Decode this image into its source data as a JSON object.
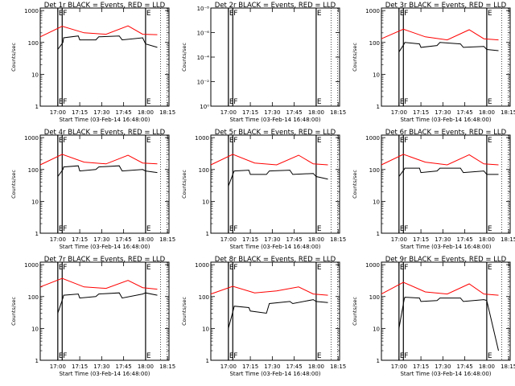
{
  "figure": {
    "title_template": "Det {det}r BLACK = Events, RED = LLD",
    "xlabel": "Start Time (03-Feb-14 16:48:00)"
  },
  "colors": {
    "events": "#000000",
    "lld": "#ff0000",
    "axes": "#000000",
    "background": "#ffffff"
  },
  "chart_data": [
    {
      "type": "line",
      "title": "Det 1r BLACK = Events, RED = LLD",
      "xlabel": "Start Time (03-Feb-14 16:48:00)",
      "ylabel": "Counts/sec",
      "x_ticks": [
        "17:00",
        "17:15",
        "17:30",
        "17:45",
        "18:00",
        "18:15"
      ],
      "y_ticks": [
        "1",
        "10",
        "100",
        "1000"
      ],
      "y_scale": "log",
      "ylim": [
        1,
        1200
      ],
      "vlines": [
        {
          "x_min": 12,
          "label": "E"
        },
        {
          "x_min": 15,
          "label": "F"
        },
        {
          "x_min": 72,
          "label": "E"
        }
      ],
      "series": [
        {
          "name": "Events",
          "x": [
            12,
            15.5,
            16,
            26,
            27,
            38,
            40,
            54,
            56,
            70,
            72,
            80
          ],
          "y": [
            60,
            100,
            140,
            160,
            120,
            120,
            150,
            160,
            120,
            140,
            90,
            70
          ]
        },
        {
          "name": "LLD",
          "x": [
            0,
            15,
            30,
            45,
            60,
            70,
            80
          ],
          "y": [
            150,
            320,
            200,
            180,
            330,
            180,
            175
          ]
        }
      ]
    },
    {
      "type": "line",
      "title": "Det 2r BLACK = Events, RED = LLD",
      "xlabel": "Start Time (03-Feb-14 16:48:00)",
      "ylabel": "Counts/sec",
      "x_ticks": [
        "17:00",
        "17:15",
        "17:30",
        "17:45",
        "18:00",
        "18:15"
      ],
      "y_ticks": [
        "10⁰",
        "10⁻²",
        "10⁻⁴",
        "10⁻⁶",
        "10⁻⁸"
      ],
      "y_scale": "linear",
      "vlines": [
        {
          "x_min": 12,
          "label": "E"
        },
        {
          "x_min": 15,
          "label": "F"
        },
        {
          "x_min": 72,
          "label": "E"
        }
      ],
      "series": [
        {
          "name": "Events",
          "x": [],
          "y": []
        },
        {
          "name": "LLD",
          "x": [],
          "y": []
        }
      ]
    },
    {
      "type": "line",
      "title": "Det 3r BLACK = Events, RED = LLD",
      "xlabel": "Start Time (03-Feb-14 16:48:00)",
      "ylabel": "Counts/sec",
      "x_ticks": [
        "17:00",
        "17:15",
        "17:30",
        "17:45",
        "18:00",
        "18:15"
      ],
      "y_ticks": [
        "1",
        "10",
        "100",
        "1000"
      ],
      "y_scale": "log",
      "ylim": [
        1,
        1200
      ],
      "vlines": [
        {
          "x_min": 12,
          "label": "E"
        },
        {
          "x_min": 15,
          "label": "F"
        },
        {
          "x_min": 72,
          "label": "E"
        }
      ],
      "series": [
        {
          "name": "Events",
          "x": [
            12,
            15.5,
            16,
            26,
            27,
            38,
            40,
            54,
            56,
            70,
            72,
            80
          ],
          "y": [
            50,
            90,
            100,
            90,
            70,
            80,
            100,
            90,
            70,
            75,
            60,
            55
          ]
        },
        {
          "name": "LLD",
          "x": [
            0,
            15,
            30,
            45,
            60,
            70,
            80
          ],
          "y": [
            130,
            260,
            150,
            120,
            250,
            130,
            120
          ]
        }
      ]
    },
    {
      "type": "line",
      "title": "Det 4r BLACK = Events, RED = LLD",
      "xlabel": "Start Time (03-Feb-14 16:48:00)",
      "ylabel": "Counts/sec",
      "x_ticks": [
        "17:00",
        "17:15",
        "17:30",
        "17:45",
        "18:00",
        "18:15"
      ],
      "y_ticks": [
        "1",
        "10",
        "100",
        "1000"
      ],
      "y_scale": "log",
      "ylim": [
        1,
        1200
      ],
      "vlines": [
        {
          "x_min": 12,
          "label": "E"
        },
        {
          "x_min": 15,
          "label": "F"
        },
        {
          "x_min": 72,
          "label": "E"
        }
      ],
      "series": [
        {
          "name": "Events",
          "x": [
            12,
            15.5,
            16,
            26,
            27,
            38,
            40,
            54,
            56,
            70,
            72,
            80
          ],
          "y": [
            60,
            100,
            120,
            130,
            90,
            100,
            120,
            130,
            90,
            100,
            90,
            80
          ]
        },
        {
          "name": "LLD",
          "x": [
            0,
            15,
            30,
            45,
            60,
            70,
            80
          ],
          "y": [
            140,
            300,
            170,
            150,
            280,
            160,
            150
          ]
        }
      ]
    },
    {
      "type": "line",
      "title": "Det 5r BLACK = Events, RED = LLD",
      "xlabel": "Start Time (03-Feb-14 16:48:00)",
      "ylabel": "Counts/sec",
      "x_ticks": [
        "17:00",
        "17:15",
        "17:30",
        "17:45",
        "18:00",
        "18:15"
      ],
      "y_ticks": [
        "1",
        "10",
        "100",
        "1000"
      ],
      "y_scale": "log",
      "ylim": [
        1,
        1200
      ],
      "vlines": [
        {
          "x_min": 12,
          "label": "E"
        },
        {
          "x_min": 15,
          "label": "F"
        },
        {
          "x_min": 72,
          "label": "E"
        }
      ],
      "series": [
        {
          "name": "Events",
          "x": [
            12,
            15.5,
            16,
            26,
            27,
            38,
            40,
            54,
            56,
            70,
            72,
            80
          ],
          "y": [
            30,
            80,
            90,
            95,
            70,
            70,
            90,
            95,
            70,
            75,
            60,
            50
          ]
        },
        {
          "name": "LLD",
          "x": [
            0,
            15,
            30,
            45,
            60,
            70,
            80
          ],
          "y": [
            140,
            300,
            160,
            140,
            280,
            150,
            140
          ]
        }
      ]
    },
    {
      "type": "line",
      "title": "Det 6r BLACK = Events, RED = LLD",
      "xlabel": "Start Time (03-Feb-14 16:48:00)",
      "ylabel": "Counts/sec",
      "x_ticks": [
        "17:00",
        "17:15",
        "17:30",
        "17:45",
        "18:00",
        "18:15"
      ],
      "y_ticks": [
        "1",
        "10",
        "100",
        "1000"
      ],
      "y_scale": "log",
      "ylim": [
        1,
        1200
      ],
      "vlines": [
        {
          "x_min": 12,
          "label": "E"
        },
        {
          "x_min": 15,
          "label": "F"
        },
        {
          "x_min": 72,
          "label": "E"
        }
      ],
      "series": [
        {
          "name": "Events",
          "x": [
            12,
            15.5,
            16,
            26,
            27,
            38,
            40,
            54,
            56,
            70,
            72,
            80
          ],
          "y": [
            60,
            100,
            110,
            110,
            80,
            90,
            110,
            110,
            80,
            90,
            70,
            70
          ]
        },
        {
          "name": "LLD",
          "x": [
            0,
            15,
            30,
            45,
            60,
            70,
            80
          ],
          "y": [
            140,
            300,
            170,
            140,
            290,
            150,
            140
          ]
        }
      ]
    },
    {
      "type": "line",
      "title": "Det 7r BLACK = Events, RED = LLD",
      "xlabel": "Start Time (03-Feb-14 16:48:00)",
      "ylabel": "Counts/sec",
      "x_ticks": [
        "17:00",
        "17:15",
        "17:30",
        "17:45",
        "18:00",
        "18:15"
      ],
      "y_ticks": [
        "1",
        "10",
        "100",
        "1000"
      ],
      "y_scale": "log",
      "ylim": [
        1,
        1200
      ],
      "vlines": [
        {
          "x_min": 12,
          "label": "E"
        },
        {
          "x_min": 15,
          "label": "F"
        },
        {
          "x_min": 72,
          "label": "E"
        }
      ],
      "series": [
        {
          "name": "Events",
          "x": [
            12,
            15.5,
            16,
            26,
            27,
            38,
            40,
            54,
            56,
            70,
            72,
            80
          ],
          "y": [
            30,
            90,
            110,
            120,
            90,
            100,
            120,
            130,
            90,
            120,
            130,
            110
          ]
        },
        {
          "name": "LLD",
          "x": [
            0,
            15,
            30,
            45,
            60,
            70,
            80
          ],
          "y": [
            200,
            370,
            200,
            180,
            320,
            190,
            170
          ]
        }
      ]
    },
    {
      "type": "line",
      "title": "Det 8r BLACK = Events, RED = LLD",
      "xlabel": "Start Time (03-Feb-14 16:48:00)",
      "ylabel": "Counts/sec",
      "x_ticks": [
        "17:00",
        "17:15",
        "17:30",
        "17:45",
        "18:00",
        "18:15"
      ],
      "y_ticks": [
        "1",
        "10",
        "100",
        "1000"
      ],
      "y_scale": "log",
      "ylim": [
        1,
        1200
      ],
      "vlines": [
        {
          "x_min": 12,
          "label": "E"
        },
        {
          "x_min": 15,
          "label": "F"
        },
        {
          "x_min": 72,
          "label": "E"
        }
      ],
      "series": [
        {
          "name": "Events",
          "x": [
            12,
            15.5,
            16,
            26,
            27,
            38,
            40,
            54,
            56,
            70,
            72,
            80
          ],
          "y": [
            10,
            40,
            50,
            45,
            35,
            30,
            60,
            70,
            60,
            80,
            70,
            65
          ]
        },
        {
          "name": "LLD",
          "x": [
            0,
            15,
            30,
            45,
            60,
            70,
            80
          ],
          "y": [
            120,
            210,
            130,
            150,
            200,
            120,
            110
          ]
        }
      ]
    },
    {
      "type": "line",
      "title": "Det 9r BLACK = Events, RED = LLD",
      "xlabel": "Start Time (03-Feb-14 16:48:00)",
      "ylabel": "Counts/sec",
      "x_ticks": [
        "17:00",
        "17:15",
        "17:30",
        "17:45",
        "18:00",
        "18:15"
      ],
      "y_ticks": [
        "1",
        "10",
        "100",
        "1000"
      ],
      "y_scale": "log",
      "ylim": [
        1,
        1200
      ],
      "vlines": [
        {
          "x_min": 12,
          "label": "E"
        },
        {
          "x_min": 15,
          "label": "F"
        },
        {
          "x_min": 72,
          "label": "E"
        }
      ],
      "series": [
        {
          "name": "Events",
          "x": [
            12,
            15.5,
            16,
            26,
            27,
            38,
            40,
            54,
            56,
            70,
            72,
            80
          ],
          "y": [
            10,
            80,
            95,
            90,
            70,
            75,
            90,
            90,
            70,
            80,
            75,
            2
          ]
        },
        {
          "name": "LLD",
          "x": [
            0,
            15,
            30,
            45,
            60,
            70,
            80
          ],
          "y": [
            120,
            280,
            140,
            120,
            250,
            120,
            110
          ]
        }
      ]
    }
  ]
}
